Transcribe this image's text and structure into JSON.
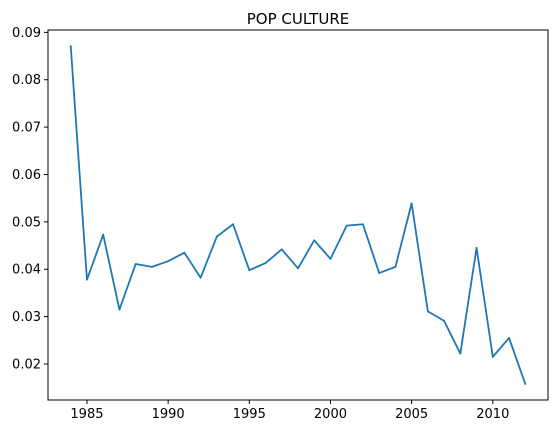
{
  "chart_data": {
    "type": "line",
    "title": "POP CULTURE",
    "xlabel": "",
    "ylabel": "",
    "xlim": [
      1982.6,
      2013.4
    ],
    "ylim": [
      0.0124,
      0.0905
    ],
    "grid": false,
    "color": "#1f77b4",
    "x_ticks": [
      1985,
      1990,
      1995,
      2000,
      2005,
      2010
    ],
    "x_tick_labels": [
      "1985",
      "1990",
      "1995",
      "2000",
      "2005",
      "2010"
    ],
    "y_ticks": [
      0.02,
      0.03,
      0.04,
      0.05,
      0.06,
      0.07,
      0.08,
      0.09
    ],
    "y_tick_labels": [
      "0.02",
      "0.03",
      "0.04",
      "0.05",
      "0.06",
      "0.07",
      "0.08",
      "0.09"
    ],
    "series": [
      {
        "x": [
          1984,
          1985,
          1986,
          1987,
          1988,
          1989,
          1990,
          1991,
          1992,
          1993,
          1994,
          1995,
          1996,
          1997,
          1998,
          1999,
          2000,
          2001,
          2002,
          2003,
          2004,
          2005,
          2006,
          2007,
          2008,
          2009,
          2010,
          2011,
          2012
        ],
        "values": [
          0.0871,
          0.0378,
          0.0473,
          0.0315,
          0.0411,
          0.0405,
          0.0417,
          0.0435,
          0.0382,
          0.0469,
          0.0495,
          0.0398,
          0.0413,
          0.0442,
          0.0402,
          0.0461,
          0.0422,
          0.0492,
          0.0495,
          0.0392,
          0.0405,
          0.0539,
          0.0311,
          0.0291,
          0.0222,
          0.0445,
          0.0215,
          0.0255,
          0.0158
        ]
      }
    ]
  }
}
